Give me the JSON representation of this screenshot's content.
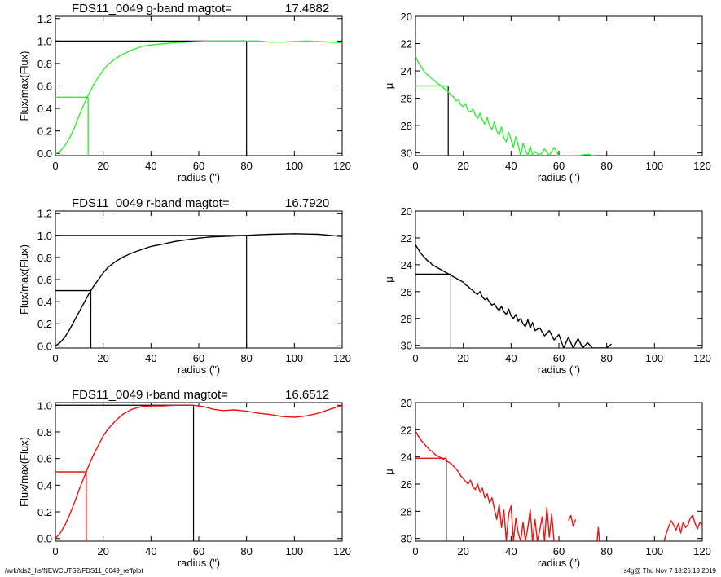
{
  "footer": {
    "left": "/wrk/fds2_hs/NEWCUTS2/FDS11_0049_reffplot",
    "right": "s4g@  Thu Nov  7 18:25:13 2019"
  },
  "chart_data": [
    {
      "type": "line",
      "panel": "g-growth",
      "title_left": "FDS11_0049 g-band  magtot=",
      "title_value": "17.4882",
      "xlabel": "radius (\")",
      "ylabel": "Flux/max(Flux)",
      "xlim": [
        0,
        120
      ],
      "ylim": [
        -0.02,
        1.22
      ],
      "xticks": [
        0,
        20,
        40,
        60,
        80,
        100,
        120
      ],
      "yticks": [
        0.0,
        0.2,
        0.4,
        0.6,
        0.8,
        1.0,
        1.2
      ],
      "ytick_labels": [
        "0.0",
        "0.2",
        "0.4",
        "0.6",
        "0.8",
        "1.0",
        "1.2"
      ],
      "color": "#33ee33",
      "series": [
        {
          "x": [
            0,
            2,
            4,
            6,
            8,
            10,
            12,
            14,
            16,
            18,
            20,
            22,
            25,
            28,
            32,
            36,
            40,
            45,
            50,
            55,
            60,
            65,
            70,
            75,
            80,
            85,
            90,
            95,
            100,
            105,
            110,
            115,
            120
          ],
          "y": [
            0.0,
            0.02,
            0.07,
            0.14,
            0.23,
            0.34,
            0.44,
            0.53,
            0.61,
            0.68,
            0.74,
            0.79,
            0.84,
            0.88,
            0.92,
            0.95,
            0.965,
            0.975,
            0.985,
            0.99,
            0.995,
            1.0,
            1.0,
            1.0,
            1.0,
            1.0,
            0.99,
            0.99,
            0.995,
            1.0,
            0.995,
            0.99,
            0.985
          ]
        }
      ],
      "half_light": {
        "x": 13.7,
        "y": 0.5
      },
      "total": {
        "x": 80,
        "y": 1.0
      }
    },
    {
      "type": "line",
      "panel": "g-profile",
      "xlabel": "radius (\")",
      "ylabel": "μ",
      "xlim": [
        0,
        120
      ],
      "ylim": [
        30.2,
        20
      ],
      "xticks": [
        0,
        20,
        40,
        60,
        80,
        100,
        120
      ],
      "yticks": [
        20,
        22,
        24,
        26,
        28,
        30
      ],
      "color": "#33ee33",
      "series": [
        {
          "x": [
            0,
            1,
            2,
            3,
            4,
            5,
            6,
            7,
            8,
            9,
            10,
            11,
            12,
            13,
            14,
            15,
            16,
            17,
            18,
            19,
            20,
            21,
            22,
            23,
            24,
            25,
            26,
            27,
            28,
            29,
            30,
            31,
            32,
            33,
            34,
            35,
            36,
            37,
            38,
            39,
            40,
            41,
            42,
            43,
            44,
            45,
            46,
            47,
            48,
            49,
            50,
            52,
            54,
            56,
            58,
            60,
            64,
            68,
            72,
            75
          ],
          "y": [
            22.9,
            23.3,
            23.6,
            23.9,
            24.1,
            24.3,
            24.4,
            24.6,
            24.7,
            24.9,
            25.0,
            25.1,
            25.3,
            25.4,
            25.6,
            25.8,
            25.9,
            26.2,
            26.1,
            26.5,
            26.6,
            26.4,
            26.9,
            27.0,
            26.8,
            27.2,
            27.5,
            27.1,
            27.6,
            27.9,
            27.4,
            28.0,
            28.3,
            27.7,
            28.4,
            28.7,
            28.1,
            28.9,
            29.2,
            28.5,
            29.0,
            29.6,
            28.8,
            29.4,
            30.2,
            29.3,
            29.8,
            30.2,
            29.5,
            30.2,
            29.9,
            30.2,
            29.7,
            30.2,
            29.6,
            30.2,
            30.2,
            30.2,
            30.1,
            30.2
          ]
        }
      ],
      "half_light": {
        "x": 13.7,
        "y": 25.1
      },
      "half_light_color": "#33ee33"
    },
    {
      "type": "line",
      "panel": "r-growth",
      "title_left": "FDS11_0049 r-band  magtot=",
      "title_value": "16.7920",
      "xlabel": "radius (\")",
      "ylabel": "Flux/max(Flux)",
      "xlim": [
        0,
        120
      ],
      "ylim": [
        -0.02,
        1.22
      ],
      "xticks": [
        0,
        20,
        40,
        60,
        80,
        100,
        120
      ],
      "yticks": [
        0.0,
        0.2,
        0.4,
        0.6,
        0.8,
        1.0,
        1.2
      ],
      "ytick_labels": [
        "0.0",
        "0.2",
        "0.4",
        "0.6",
        "0.8",
        "1.0",
        "1.2"
      ],
      "color": "#000000",
      "series": [
        {
          "x": [
            0,
            2,
            4,
            6,
            8,
            10,
            12,
            14,
            16,
            18,
            20,
            22,
            25,
            28,
            32,
            36,
            40,
            45,
            50,
            55,
            60,
            65,
            70,
            75,
            80,
            85,
            90,
            95,
            100,
            105,
            110,
            115,
            120
          ],
          "y": [
            0.0,
            0.03,
            0.08,
            0.15,
            0.23,
            0.31,
            0.39,
            0.47,
            0.54,
            0.6,
            0.66,
            0.71,
            0.76,
            0.8,
            0.84,
            0.87,
            0.9,
            0.92,
            0.945,
            0.96,
            0.975,
            0.985,
            0.99,
            0.995,
            1.0,
            1.005,
            1.01,
            1.012,
            1.015,
            1.012,
            1.01,
            1.0,
            0.99
          ]
        }
      ],
      "half_light": {
        "x": 14.8,
        "y": 0.5
      },
      "total": {
        "x": 80,
        "y": 1.0
      }
    },
    {
      "type": "line",
      "panel": "r-profile",
      "xlabel": "radius (\")",
      "ylabel": "μ",
      "xlim": [
        0,
        120
      ],
      "ylim": [
        30.2,
        20
      ],
      "xticks": [
        0,
        20,
        40,
        60,
        80,
        100,
        120
      ],
      "yticks": [
        20,
        22,
        24,
        26,
        28,
        30
      ],
      "color": "#000000",
      "series": [
        {
          "x": [
            0,
            1,
            2,
            3,
            4,
            5,
            6,
            7,
            8,
            9,
            10,
            11,
            12,
            13,
            14,
            15,
            16,
            17,
            18,
            19,
            20,
            21,
            22,
            23,
            24,
            25,
            26,
            27,
            28,
            29,
            30,
            31,
            32,
            33,
            34,
            35,
            36,
            37,
            38,
            39,
            40,
            41,
            42,
            43,
            44,
            45,
            46,
            47,
            48,
            49,
            50,
            52,
            54,
            56,
            58,
            60,
            62,
            64,
            66,
            68,
            70,
            72,
            74,
            76,
            78,
            80,
            82
          ],
          "y": [
            22.5,
            22.8,
            23.1,
            23.3,
            23.5,
            23.7,
            23.8,
            24.0,
            24.1,
            24.2,
            24.3,
            24.4,
            24.5,
            24.6,
            24.7,
            24.8,
            24.9,
            25.0,
            25.1,
            25.2,
            25.3,
            25.5,
            25.6,
            25.8,
            25.9,
            26.1,
            26.2,
            26.0,
            26.4,
            26.6,
            26.5,
            26.8,
            27.0,
            26.9,
            27.2,
            27.4,
            27.1,
            27.5,
            27.7,
            27.3,
            27.8,
            28.0,
            27.7,
            28.2,
            28.0,
            28.4,
            28.6,
            28.1,
            28.7,
            28.3,
            28.9,
            28.7,
            29.3,
            28.9,
            29.6,
            29.2,
            30.2,
            29.4,
            30.2,
            29.5,
            30.2,
            29.8,
            30.2,
            30.2,
            30.2,
            30.2,
            29.9
          ]
        }
      ],
      "half_light": {
        "x": 14.8,
        "y": 24.7
      },
      "half_light_color": "#000000"
    },
    {
      "type": "line",
      "panel": "i-growth",
      "title_left": "FDS11_0049 i-band  magtot=",
      "title_value": "16.6512",
      "xlabel": "radius (\")",
      "ylabel": "Flux/max(Flux)",
      "xlim": [
        0,
        120
      ],
      "ylim": [
        -0.02,
        1.02
      ],
      "xticks": [
        0,
        20,
        40,
        60,
        80,
        100,
        120
      ],
      "yticks": [
        0.0,
        0.2,
        0.4,
        0.6,
        0.8,
        1.0
      ],
      "ytick_labels": [
        "0.0",
        "0.2",
        "0.4",
        "0.6",
        "0.8",
        "1.0"
      ],
      "color": "#ee1111",
      "series": [
        {
          "x": [
            0,
            2,
            4,
            6,
            8,
            10,
            12,
            14,
            16,
            18,
            20,
            22,
            25,
            28,
            32,
            36,
            40,
            45,
            50,
            55,
            58,
            62,
            66,
            70,
            75,
            80,
            85,
            90,
            95,
            100,
            105,
            110,
            115,
            120
          ],
          "y": [
            0.0,
            0.04,
            0.1,
            0.18,
            0.27,
            0.37,
            0.46,
            0.55,
            0.63,
            0.7,
            0.77,
            0.82,
            0.88,
            0.93,
            0.97,
            0.99,
            0.995,
            0.995,
            1.0,
            1.0,
            1.0,
            0.99,
            0.97,
            0.96,
            0.965,
            0.955,
            0.94,
            0.93,
            0.915,
            0.91,
            0.92,
            0.94,
            0.97,
            1.0
          ]
        }
      ],
      "half_light": {
        "x": 12.9,
        "y": 0.5
      },
      "total": {
        "x": 57.8,
        "y": 1.0
      }
    },
    {
      "type": "line",
      "panel": "i-profile",
      "xlabel": "radius (\")",
      "ylabel": "μ",
      "xlim": [
        0,
        120
      ],
      "ylim": [
        30.2,
        20
      ],
      "xticks": [
        0,
        20,
        40,
        60,
        80,
        100,
        120
      ],
      "yticks": [
        20,
        22,
        24,
        26,
        28,
        30
      ],
      "color": "#ee1111",
      "series": [
        {
          "x": [
            0,
            1,
            2,
            3,
            4,
            5,
            6,
            7,
            8,
            9,
            10,
            11,
            12,
            13,
            14,
            15,
            16,
            17,
            18,
            19,
            20,
            21,
            22,
            23,
            24,
            25,
            26,
            27,
            28,
            29,
            30,
            31,
            32,
            33,
            34,
            35,
            36,
            37,
            38,
            39,
            40,
            41,
            42,
            43,
            44,
            45,
            46,
            47,
            48,
            49,
            50,
            51,
            52,
            53,
            54,
            55,
            56,
            57,
            58,
            59,
            60
          ],
          "y": [
            22.1,
            22.4,
            22.7,
            22.9,
            23.1,
            23.3,
            23.5,
            23.6,
            23.8,
            23.9,
            24.0,
            24.1,
            24.2,
            24.3,
            24.4,
            24.5,
            24.7,
            24.9,
            25.1,
            25.4,
            25.6,
            25.8,
            26.0,
            25.7,
            26.2,
            26.4,
            26.0,
            26.6,
            26.3,
            27.0,
            26.7,
            27.4,
            27.0,
            27.8,
            28.6,
            27.5,
            29.2,
            27.9,
            30.2,
            28.2,
            27.6,
            30.2,
            28.5,
            29.6,
            30.2,
            28.8,
            30.2,
            29.2,
            27.9,
            30.2,
            28.6,
            30.2,
            29.4,
            28.4,
            30.2,
            27.7,
            29.9,
            28.2,
            30.2,
            30.2,
            30.2
          ]
        },
        {
          "x": [
            64,
            65,
            66,
            67
          ],
          "y": [
            28.7,
            28.3,
            29.1,
            28.6
          ]
        },
        {
          "x": [
            76,
            76.5,
            77
          ],
          "y": [
            30.2,
            29.2,
            30.2
          ]
        },
        {
          "x": [
            104,
            105,
            106,
            107,
            108,
            109,
            110,
            111,
            112,
            113,
            114,
            115,
            116,
            117,
            118,
            119,
            120
          ],
          "y": [
            30.2,
            29.6,
            29.1,
            28.7,
            29.0,
            29.4,
            28.9,
            29.6,
            28.8,
            29.2,
            29.0,
            28.5,
            28.3,
            28.9,
            29.3,
            28.8,
            29.0
          ]
        }
      ],
      "half_light": {
        "x": 12.9,
        "y": 24.1
      },
      "half_light_color": "#ee1111"
    }
  ]
}
